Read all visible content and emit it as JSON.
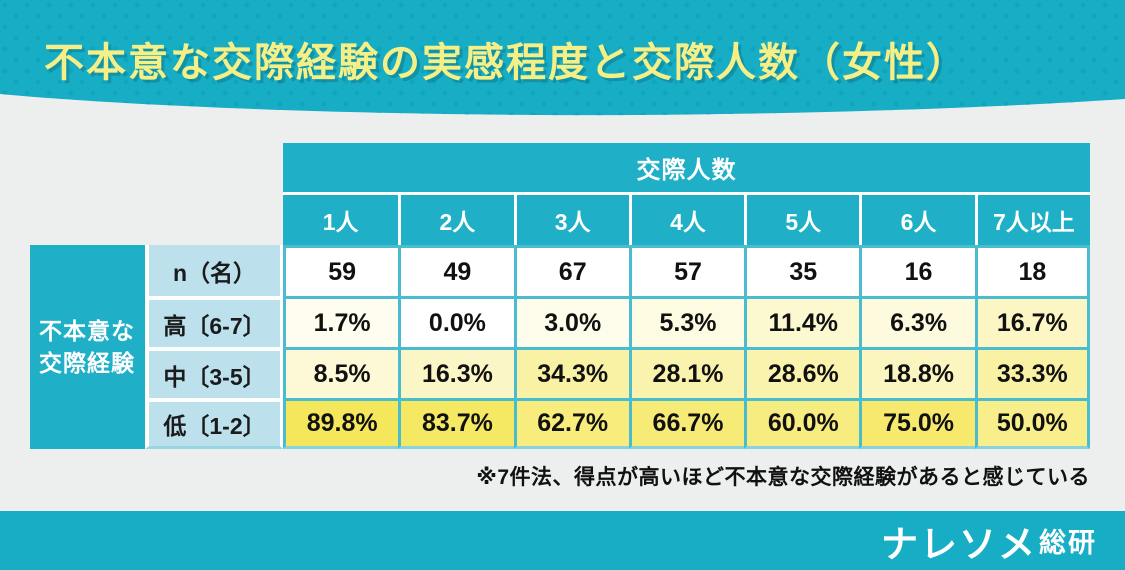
{
  "header": {
    "title": "不本意な交際経験の実感程度と交際人数（女性）"
  },
  "footnote": {
    "text": "※7件法、得点が高いほど不本意な交際経験があると感じている"
  },
  "footer": {
    "logo_main": "ナレソメ",
    "logo_sub": "総研"
  },
  "colors": {
    "banner_teal": "#16ADC5",
    "banner_dot": "#0FA5BC",
    "table_teal": "#1FB0C7",
    "grid_cyan": "#4ABCD0",
    "label_blue": "#BCE1ED",
    "heat_max_yellow": "#F5E75C",
    "title_yellow": "#F4EF87",
    "page_bg": "#EDEEEE"
  },
  "chart_data": {
    "type": "table",
    "title": "不本意な交際経験の実感程度と交際人数（女性）",
    "column_group_label": "交際人数",
    "columns": [
      "1人",
      "2人",
      "3人",
      "4人",
      "5人",
      "6人",
      "7人以上"
    ],
    "row_group_label": "不本意な交際経験",
    "row_group_lines": [
      "不本意な",
      "交際経験"
    ],
    "rows": [
      {
        "label": "n（名）",
        "kind": "count",
        "values": [
          59,
          49,
          67,
          57,
          35,
          16,
          18
        ]
      },
      {
        "label": "高〔6-7〕",
        "kind": "percent",
        "values": [
          1.7,
          0.0,
          3.0,
          5.3,
          11.4,
          6.3,
          16.7
        ]
      },
      {
        "label": "中〔3-5〕",
        "kind": "percent",
        "values": [
          8.5,
          16.3,
          34.3,
          28.1,
          28.6,
          18.8,
          33.3
        ]
      },
      {
        "label": "低〔1-2〕",
        "kind": "percent",
        "values": [
          89.8,
          83.7,
          62.7,
          66.7,
          60.0,
          75.0,
          50.0
        ]
      }
    ],
    "layout_hints": {
      "heatmap": "percent cells shaded white → yellow proportional to value",
      "heat_domain": [
        0,
        90
      ]
    }
  }
}
